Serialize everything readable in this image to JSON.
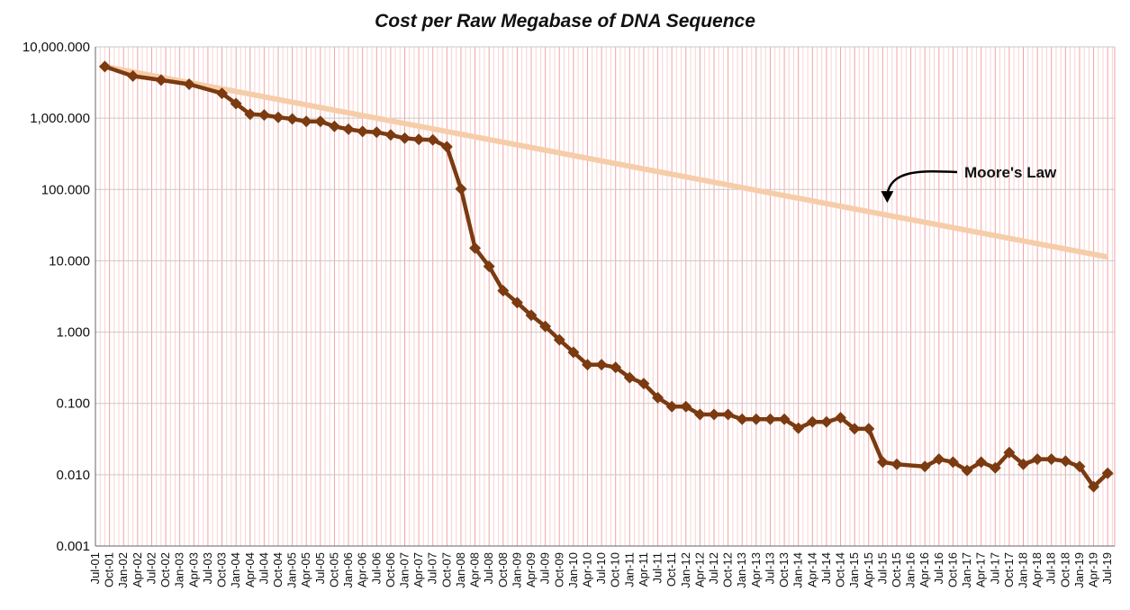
{
  "chart_data": {
    "type": "line",
    "title": "Cost per Raw Megabase of DNA Sequence",
    "xlabel": "",
    "ylabel": "",
    "y_scale": "log",
    "ylim": [
      0.001,
      10000
    ],
    "y_tick_labels": [
      "10,000.000",
      "1,000.000",
      "100.000",
      "10.000",
      "1.000",
      "0.100",
      "0.010",
      "0.001"
    ],
    "x_tick_labels": [
      "Jul-01",
      "Oct-01",
      "Jan-02",
      "Apr-02",
      "Jul-02",
      "Oct-02",
      "Jan-03",
      "Apr-03",
      "Jul-03",
      "Oct-03",
      "Jan-04",
      "Apr-04",
      "Jul-04",
      "Oct-04",
      "Jan-05",
      "Apr-05",
      "Jul-05",
      "Oct-05",
      "Jan-06",
      "Apr-06",
      "Jul-06",
      "Oct-06",
      "Jan-07",
      "Apr-07",
      "Jul-07",
      "Oct-07",
      "Jan-08",
      "Apr-08",
      "Jul-08",
      "Oct-08",
      "Jan-09",
      "Apr-09",
      "Jul-09",
      "Oct-09",
      "Jan-10",
      "Apr-10",
      "Jul-10",
      "Oct-10",
      "Jan-11",
      "Apr-11",
      "Jul-11",
      "Oct-11",
      "Jan-12",
      "Apr-12",
      "Jul-12",
      "Oct-12",
      "Jan-13",
      "Apr-13",
      "Jul-13",
      "Oct-13",
      "Jan-14",
      "Apr-14",
      "Jul-14",
      "Oct-14",
      "Jan-15",
      "Apr-15",
      "Jul-15",
      "Oct-15",
      "Jan-16",
      "Apr-16",
      "Jul-16",
      "Oct-16",
      "Jan-17",
      "Apr-17",
      "Jul-17",
      "Oct-17",
      "Jan-18",
      "Apr-18",
      "Jul-18",
      "Oct-18",
      "Jan-19",
      "Apr-19",
      "Jul-19"
    ],
    "grid": true,
    "series": [
      {
        "name": "",
        "color": "#7B3A10",
        "marker": "diamond",
        "x": [
          "Sep-01",
          "Mar-02",
          "Sep-02",
          "Mar-03",
          "Oct-03",
          "Jan-04",
          "Apr-04",
          "Jul-04",
          "Oct-04",
          "Jan-05",
          "Apr-05",
          "Jul-05",
          "Oct-05",
          "Jan-06",
          "Apr-06",
          "Jul-06",
          "Oct-06",
          "Jan-07",
          "Apr-07",
          "Jul-07",
          "Oct-07",
          "Jan-08",
          "Apr-08",
          "Jul-08",
          "Oct-08",
          "Jan-09",
          "Apr-09",
          "Jul-09",
          "Oct-09",
          "Jan-10",
          "Apr-10",
          "Jul-10",
          "Oct-10",
          "Jan-11",
          "Apr-11",
          "Jul-11",
          "Oct-11",
          "Jan-12",
          "Apr-12",
          "Jul-12",
          "Oct-12",
          "Jan-13",
          "Apr-13",
          "Jul-13",
          "Oct-13",
          "Jan-14",
          "Apr-14",
          "Jul-14",
          "Oct-14",
          "Jan-15",
          "Apr-15",
          "Jul-15",
          "Oct-15",
          "Apr-16",
          "Jul-16",
          "Oct-16",
          "Jan-17",
          "Apr-17",
          "Jul-17",
          "Oct-17",
          "Jan-18",
          "Apr-18",
          "Jul-18",
          "Oct-18",
          "Jan-19",
          "Apr-19",
          "Jul-19"
        ],
        "values": [
          5292.39,
          3898.64,
          3413.8,
          2986.2,
          2230.98,
          1598.91,
          1135.7,
          1107.46,
          1028.85,
          974.16,
          897.76,
          898.9,
          766.73,
          699.2,
          651.81,
          636.41,
          581.92,
          522.71,
          502.61,
          495.96,
          397.09,
          102.13,
          15.03,
          8.36,
          3.81,
          2.59,
          1.72,
          1.2,
          0.78,
          0.52,
          0.35,
          0.35,
          0.32,
          0.23,
          0.19,
          0.12,
          0.09,
          0.09,
          0.07,
          0.07,
          0.07,
          0.06,
          0.06,
          0.06,
          0.06,
          0.045,
          0.055,
          0.055,
          0.063,
          0.044,
          0.044,
          0.015,
          0.014,
          0.013,
          0.0165,
          0.015,
          0.0115,
          0.015,
          0.0125,
          0.0205,
          0.014,
          0.0165,
          0.0165,
          0.0155,
          0.013,
          0.0068,
          0.0105
        ]
      },
      {
        "name": "Moore's Law",
        "color": "#F6CDA9",
        "x": [
          "Sep-01",
          "Jul-19"
        ],
        "values": [
          5292.39,
          11.3
        ]
      }
    ],
    "annotations": [
      {
        "text": "Moore's Law",
        "arrow_to": {
          "x": "Jul-15",
          "y": 50
        }
      }
    ]
  }
}
